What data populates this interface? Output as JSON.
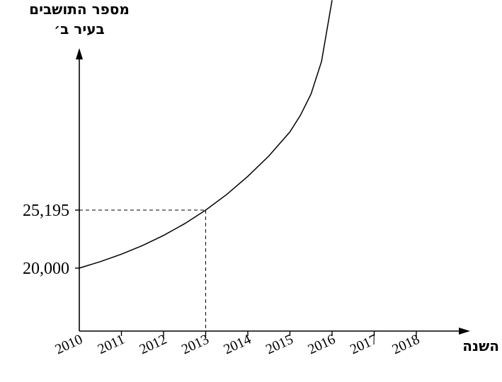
{
  "chart_data": {
    "type": "line",
    "ylabel_line1": "מספר התושבים",
    "ylabel_line2": "בעיר ב׳",
    "xlabel": "השנה",
    "x_ticks": [
      "2010",
      "2011",
      "2012",
      "2013",
      "2014",
      "2015",
      "2016",
      "2017",
      "2018"
    ],
    "y_tick_labels": [
      "25,195",
      "20,000"
    ],
    "y_tick_values": [
      25195,
      20000
    ],
    "series": [
      {
        "x": [
          2010,
          2010.5,
          2011,
          2011.5,
          2012,
          2012.5,
          2013,
          2013.5,
          2014,
          2014.5,
          2015,
          2015.25,
          2015.5,
          2015.75,
          2016
        ],
        "y": [
          20000,
          20580,
          21250,
          22020,
          22930,
          23980,
          25195,
          26600,
          28220,
          30050,
          32200,
          33700,
          35600,
          38500,
          44000
        ]
      }
    ],
    "markers": [
      {
        "x": 2013,
        "y": 25195,
        "style": "dashed"
      }
    ],
    "xlim": [
      2010,
      2018
    ],
    "ylim": [
      15000,
      44000
    ]
  }
}
